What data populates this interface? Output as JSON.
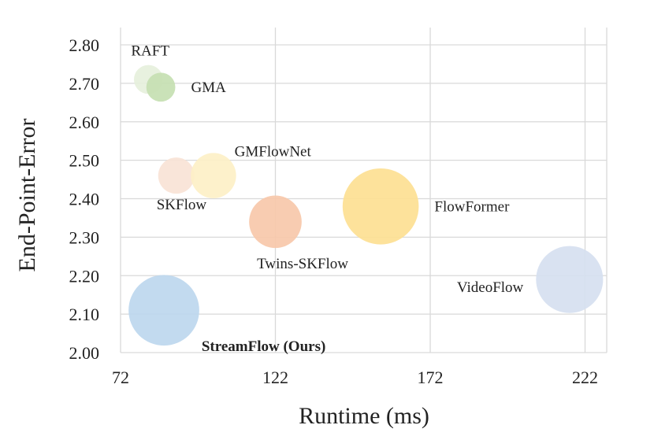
{
  "chart_data": {
    "type": "scatter",
    "title": "",
    "xlabel": "Runtime (ms)",
    "ylabel": "End-Point-Error",
    "xlim": [
      72,
      229
    ],
    "ylim": [
      2.0,
      2.8
    ],
    "x_ticks": [
      "72",
      "122",
      "172",
      "222"
    ],
    "y_ticks": [
      "2.00",
      "2.10",
      "2.20",
      "2.30",
      "2.40",
      "2.50",
      "2.60",
      "2.70",
      "2.80"
    ],
    "grid": true,
    "points": [
      {
        "name": "RAFT",
        "x": 81,
        "y": 2.71,
        "size": 16,
        "color": "#e6f0dc",
        "bold": false,
        "label_pos": "above"
      },
      {
        "name": "GMA",
        "x": 85,
        "y": 2.69,
        "size": 16,
        "color": "#c5dfb2",
        "bold": false,
        "label_pos": "right"
      },
      {
        "name": "SKFlow",
        "x": 90,
        "y": 2.46,
        "size": 20,
        "color": "#f8e3d6",
        "bold": false,
        "label_pos": "below"
      },
      {
        "name": "GMFlowNet",
        "x": 102,
        "y": 2.46,
        "size": 25,
        "color": "#fdf0c7",
        "bold": false,
        "label_pos": "upper-right"
      },
      {
        "name": "Twins-SKFlow",
        "x": 122,
        "y": 2.34,
        "size": 29,
        "color": "#f7c8aa",
        "bold": false,
        "label_pos": "below-right"
      },
      {
        "name": "FlowFormer",
        "x": 156,
        "y": 2.38,
        "size": 42,
        "color": "#fddf93",
        "bold": false,
        "label_pos": "right"
      },
      {
        "name": "VideoFlow",
        "x": 217,
        "y": 2.19,
        "size": 37,
        "color": "#d6e0f0",
        "bold": false,
        "label_pos": "left"
      },
      {
        "name": "StreamFlow (Ours)",
        "x": 86,
        "y": 2.11,
        "size": 39,
        "color": "#bdd7ee",
        "bold": true,
        "label_pos": "below-right"
      }
    ]
  }
}
